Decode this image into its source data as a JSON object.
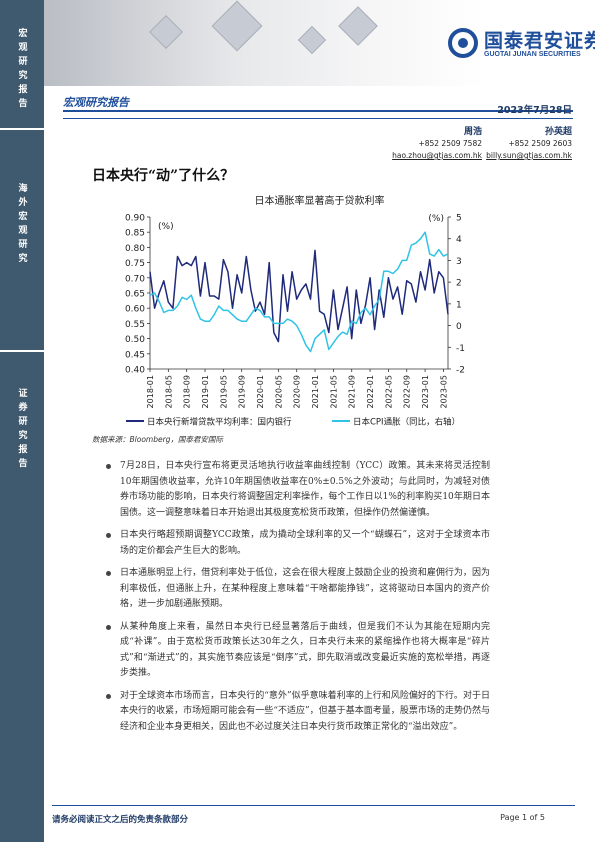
{
  "sidebar": {
    "block1": "宏观研究报告",
    "block2": "海外宏观研究",
    "block3": "证券研究报告"
  },
  "header": {
    "logo_cn": "国泰君安证券",
    "logo_en": "GUOTAI JUNAN SECURITIES",
    "report_type": "宏观研究报告",
    "date": "2023年7月28日"
  },
  "authors": [
    {
      "name": "周浩",
      "phone": "+852 2509 7582",
      "email": "hao.zhou@gtjas.com.hk"
    },
    {
      "name": "孙英超",
      "phone": "+852 2509 2603",
      "email": "billy.sun@gtjas.com.hk"
    }
  ],
  "headline": "日本央行“动”了什么？",
  "source": "数据来源：Bloomberg，国泰君安国际",
  "chart_data": {
    "type": "line",
    "title": "日本通胀率显著高于贷款利率",
    "left_unit": "(%)",
    "right_unit": "(%)",
    "left_ylim": [
      0.4,
      0.9
    ],
    "left_ticks": [
      "0.40",
      "0.45",
      "0.50",
      "0.55",
      "0.60",
      "0.65",
      "0.70",
      "0.75",
      "0.80",
      "0.85",
      "0.90"
    ],
    "right_ylim": [
      -2,
      5
    ],
    "right_ticks": [
      "-2",
      "-1",
      "0",
      "1",
      "2",
      "3",
      "4",
      "5"
    ],
    "x_ticks": [
      "2018-01",
      "2018-05",
      "2018-09",
      "2019-01",
      "2019-05",
      "2019-09",
      "2020-01",
      "2020-05",
      "2020-09",
      "2021-01",
      "2021-05",
      "2021-09",
      "2022-01",
      "2022-05",
      "2022-09",
      "2023-01",
      "2023-05"
    ],
    "months": [
      "2018-01",
      "2018-02",
      "2018-03",
      "2018-04",
      "2018-05",
      "2018-06",
      "2018-07",
      "2018-08",
      "2018-09",
      "2018-10",
      "2018-11",
      "2018-12",
      "2019-01",
      "2019-02",
      "2019-03",
      "2019-04",
      "2019-05",
      "2019-06",
      "2019-07",
      "2019-08",
      "2019-09",
      "2019-10",
      "2019-11",
      "2019-12",
      "2020-01",
      "2020-02",
      "2020-03",
      "2020-04",
      "2020-05",
      "2020-06",
      "2020-07",
      "2020-08",
      "2020-09",
      "2020-10",
      "2020-11",
      "2020-12",
      "2021-01",
      "2021-02",
      "2021-03",
      "2021-04",
      "2021-05",
      "2021-06",
      "2021-07",
      "2021-08",
      "2021-09",
      "2021-10",
      "2021-11",
      "2021-12",
      "2022-01",
      "2022-02",
      "2022-03",
      "2022-04",
      "2022-05",
      "2022-06",
      "2022-07",
      "2022-08",
      "2022-09",
      "2022-10",
      "2022-11",
      "2022-12",
      "2023-01",
      "2023-02",
      "2023-03",
      "2023-04",
      "2023-05",
      "2023-06"
    ],
    "series": [
      {
        "name": "日本央行新增贷款平均利率：国内银行",
        "axis": "left",
        "color": "#1f2a7a",
        "values": [
          0.72,
          0.6,
          0.65,
          0.69,
          0.62,
          0.6,
          0.77,
          0.74,
          0.75,
          0.74,
          0.77,
          0.64,
          0.75,
          0.64,
          0.64,
          0.63,
          0.76,
          0.72,
          0.6,
          0.71,
          0.65,
          0.77,
          0.66,
          0.59,
          0.62,
          0.58,
          0.75,
          0.52,
          0.49,
          0.71,
          0.59,
          0.72,
          0.63,
          0.66,
          0.68,
          0.63,
          0.79,
          0.59,
          0.58,
          0.52,
          0.66,
          0.53,
          0.6,
          0.67,
          0.5,
          0.66,
          0.55,
          0.61,
          0.7,
          0.53,
          0.66,
          0.57,
          0.7,
          0.63,
          0.67,
          0.58,
          0.69,
          0.68,
          0.62,
          0.72,
          0.66,
          0.76,
          0.65,
          0.72,
          0.7,
          0.58
        ]
      },
      {
        "name": "日本CPI通胀（同比，右轴）",
        "axis": "right",
        "color": "#2fc4e6",
        "values": [
          1.4,
          1.5,
          1.1,
          0.6,
          0.7,
          0.7,
          0.9,
          1.3,
          1.2,
          1.4,
          0.8,
          0.3,
          0.2,
          0.2,
          0.5,
          0.9,
          0.7,
          0.7,
          0.5,
          0.3,
          0.2,
          0.2,
          0.5,
          0.8,
          0.7,
          0.4,
          0.4,
          0.1,
          0.1,
          0.1,
          0.3,
          0.2,
          0.0,
          -0.4,
          -0.9,
          -1.2,
          -0.6,
          -0.4,
          -0.2,
          -1.1,
          -0.8,
          -0.5,
          -0.3,
          -0.4,
          0.2,
          0.1,
          0.6,
          0.8,
          0.5,
          0.9,
          1.2,
          2.5,
          2.5,
          2.4,
          2.6,
          3.0,
          3.0,
          3.7,
          3.8,
          4.0,
          4.3,
          3.3,
          3.2,
          3.5,
          3.2,
          3.3
        ]
      }
    ],
    "legend_position": "bottom",
    "grid": false
  },
  "bullets": [
    "7月28日，日本央行宣布将更灵活地执行收益率曲线控制（YCC）政策。其未来将灵活控制10年期国债收益率，允许10年期国债收益率在0%±0.5%之外波动；与此同时，为减轻对债券市场功能的影响，日本央行将调整固定利率操作，每个工作日以1%的利率购买10年期日本国债。这一调整意味着日本开始退出其极度宽松货币政策，但操作仍然偏谨慎。",
    "日本央行略超预期调整YCC政策，成为撬动全球利率的又一个“蝴蝶石”，这对于全球资本市场的定价都会产生巨大的影响。",
    "日本通胀明显上行，借贷利率处于低位，这会在很大程度上鼓励企业的投资和雇佣行为，因为利率极低，但通胀上升，在某种程度上意味着“干啥都能挣钱”，这将驱动日本国内的资产价格，进一步加剧通胀预期。",
    "从某种角度上来看，虽然日本央行已经显著落后于曲线，但是我们不认为其能在短期内完成“补课”。由于宽松货币政策长达30年之久，日本央行未来的紧缩操作也将大概率是“碎片式”和“渐进式”的，其实施节奏应该是“倒序”式，即先取消或改变最近实施的宽松举措，再逐步类推。",
    "对于全球资本市场而言，日本央行的“意外”似乎意味着利率的上行和风险偏好的下行。对于日本央行的收紧，市场短期可能会有一些“不适应”，但基于基本面考量，股票市场的走势仍然与经济和企业本身更相关，因此也不必过度关注日本央行货币政策正常化的“溢出效应”。"
  ],
  "footer": {
    "disclaimer": "请务必阅读正文之后的免责条款部分",
    "page": "Page 1 of 5"
  }
}
